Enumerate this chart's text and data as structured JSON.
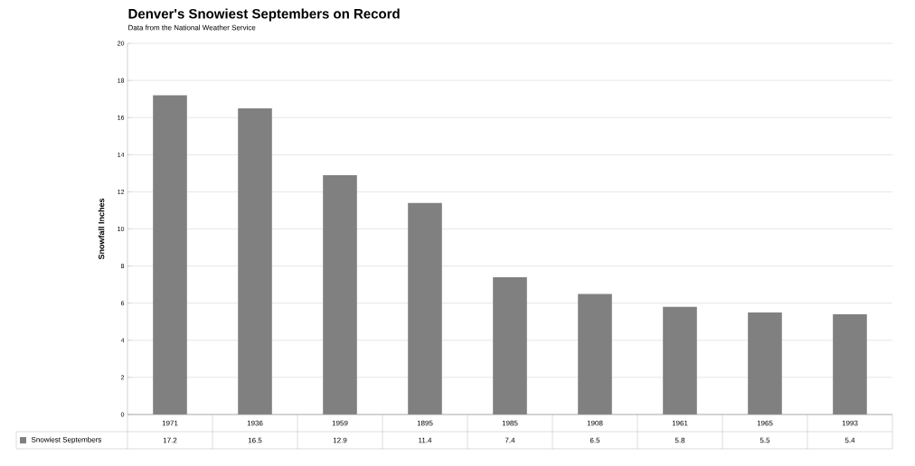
{
  "chart_data": {
    "type": "bar",
    "title": "Denver's Snowiest Septembers on Record",
    "subtitle": "Data from the National Weather Service",
    "ylabel": "Snowfall Inches",
    "categories": [
      "1971",
      "1936",
      "1959",
      "1895",
      "1985",
      "1908",
      "1961",
      "1965",
      "1993"
    ],
    "series": [
      {
        "name": "Snowiest Septembers",
        "color": "#808080",
        "values": [
          17.2,
          16.5,
          12.9,
          11.4,
          7.4,
          6.5,
          5.8,
          5.5,
          5.4
        ]
      }
    ],
    "ylim": [
      0,
      20
    ],
    "yticks": [
      0,
      2,
      4,
      6,
      8,
      10,
      12,
      14,
      16,
      18,
      20
    ],
    "grid": "y",
    "legend": "bottom left",
    "data_labels": true
  }
}
